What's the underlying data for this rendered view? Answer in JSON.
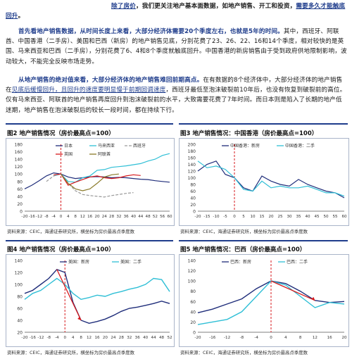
{
  "paragraphs": {
    "p1_prefix": "",
    "p1_bold_a": "除了房价",
    "p1_rest_a": "，我们更关注地产基本面数据，如地产销售、开工和投资，",
    "p1_bold_b": "需要多久才能触底回升",
    "p1_end": "。",
    "p2_bold": "首先看地产销售数据，从时间长度上来看，大部分经济体需要20个季度左右，也就是5年的时间。",
    "p2_rest": "其中，西班牙、阿联酋、中国香港（二手房）、美国和巴西（新房）的地产销售见底，分别花费了23、26、22、16和14个季度，相对较快的是英国、马来西亚和巴西（二手房），分别花费了6、4和8个季度就触底回升。中国香港的新房销售由于受到政府供地限制影响，波动较大，不能完全反映市场走势。",
    "p3_bold": "从地产销售的绝对值来看，大部分经济体的地产销售难回前期高点。",
    "p3_rest_a": "在有数据的8个经济体中，大部分经济体的地产销售在",
    "p3_underline": "见底后缓慢回升，且回升的速度要明显慢于前期回调速度",
    "p3_rest_b": "，西班牙最低至泡沫破裂前10年后，也没有恢复到破裂前的高位。仅有马来西亚、阿联酋的地产销售再度回升到泡沫破裂前的水平，大致需要花费了7年时间。而日本则是陷入了长期的地产低迷期，地产销售在泡沫破裂后的较长一段时间，都在持续下行。"
  },
  "figures": {
    "fig2": {
      "caption": "图2  地产销售情况（房价最高点=100）",
      "source": "资料来源：CEIC，海通证券研究所，横坐标为房价最高点季度数",
      "legend": [
        "日本",
        "马来西亚",
        "西班牙",
        "英国",
        "阿联酋"
      ],
      "x_ticks": [
        "-20",
        "-16",
        "-12",
        "-8",
        "-4",
        "0",
        "4",
        "8",
        "12",
        "16",
        "20",
        "24",
        "28",
        "32",
        "36",
        "40",
        "44",
        "48",
        "52",
        "56",
        "60"
      ],
      "y_ticks": [
        "0",
        "20",
        "40",
        "60",
        "80",
        "100",
        "120",
        "140",
        "160",
        "180"
      ]
    },
    "fig3": {
      "caption": "图3  地产销售情况：中国香港（房价最高点=100）",
      "source": "资料来源：CEIC，海通证券研究所，横坐标为房价最高点季度数",
      "legend": [
        "中国香港：新房",
        "中国香港：二手"
      ],
      "x_ticks": [
        "-20",
        "-15",
        "-10",
        "-5",
        "0",
        "5",
        "10",
        "15",
        "20",
        "25",
        "30",
        "35",
        "40",
        "45",
        "50",
        "55",
        "60"
      ],
      "y_ticks": [
        "0",
        "20",
        "40",
        "60",
        "80",
        "100",
        "120",
        "140",
        "160",
        "180",
        "200"
      ]
    },
    "fig4": {
      "caption": "图4  地产销售情况（房价最高点=100）",
      "source": "资料来源：CEIC，海通证券研究所，横坐标为房价最高点季度数",
      "legend": [
        "美国：新房",
        "美国：二手"
      ],
      "x_ticks": [
        "-20",
        "-16",
        "-12",
        "-8",
        "-4",
        "0",
        "4",
        "8",
        "12",
        "16",
        "20",
        "24",
        "28",
        "32",
        "36",
        "40",
        "44",
        "48",
        "52"
      ],
      "y_ticks": [
        "20",
        "40",
        "60",
        "80",
        "100",
        "120",
        "140"
      ]
    },
    "fig5": {
      "caption": "图5  地产销售情况：巴西（房价最高点=100）",
      "source": "资料来源：CEIC，海通证券研究所，横坐标为房价最高点季度数",
      "legend": [
        "巴西：新房",
        "巴西：二手"
      ],
      "x_ticks": [
        "-20",
        "-16",
        "-12",
        "-8",
        "-4",
        "0",
        "4",
        "8",
        "12",
        "16",
        "20"
      ],
      "y_ticks": [
        "0",
        "20",
        "40",
        "60",
        "80",
        "100",
        "120",
        "140"
      ]
    }
  },
  "colors": {
    "navy": "#1f2d7a",
    "cyan": "#2fbfd6",
    "gray": "#9a9a9a",
    "red": "#d7191c",
    "olive": "#8a7a2a",
    "caption_line": "#1f3d8c"
  },
  "chart_data": [
    {
      "type": "line",
      "title": "地产销售情况（房价最高点=100）",
      "x": [
        -20,
        -16,
        -12,
        -8,
        -4,
        0,
        4,
        8,
        12,
        16,
        20,
        24,
        28,
        32,
        36,
        40,
        44,
        48,
        52,
        56,
        60
      ],
      "ylim": [
        0,
        180
      ],
      "series": [
        {
          "name": "日本",
          "values": [
            60,
            70,
            82,
            95,
            103,
            100,
            92,
            88,
            90,
            92,
            93,
            92,
            90,
            91,
            90,
            88,
            86,
            85,
            82,
            80,
            78
          ]
        },
        {
          "name": "马来西亚",
          "values": [
            null,
            null,
            null,
            null,
            95,
            100,
            80,
            78,
            90,
            95,
            110,
            112,
            118,
            120,
            122,
            125,
            128,
            135,
            140,
            150,
            155
          ]
        },
        {
          "name": "西班牙",
          "values": [
            null,
            null,
            null,
            80,
            95,
            100,
            75,
            55,
            45,
            42,
            40,
            38,
            42,
            45,
            48,
            50,
            null,
            null,
            null,
            null,
            null
          ]
        },
        {
          "name": "英国",
          "values": [
            null,
            null,
            null,
            null,
            98,
            100,
            70,
            78,
            85,
            92,
            95,
            90,
            88,
            90,
            95,
            98,
            96,
            null,
            null,
            null,
            null
          ]
        },
        {
          "name": "阿联酋",
          "values": [
            null,
            null,
            null,
            null,
            null,
            100,
            75,
            60,
            55,
            60,
            75,
            92,
            98,
            100,
            null,
            null,
            null,
            null,
            null,
            null,
            null
          ]
        }
      ]
    },
    {
      "type": "line",
      "title": "地产销售情况：中国香港（房价最高点=100）",
      "x": [
        -20,
        -15,
        -10,
        -5,
        0,
        5,
        10,
        15,
        20,
        25,
        30,
        35,
        40,
        45,
        50,
        55,
        60
      ],
      "ylim": [
        0,
        200
      ],
      "series": [
        {
          "name": "中国香港：新房",
          "values": [
            120,
            140,
            150,
            110,
            100,
            70,
            60,
            105,
            90,
            80,
            75,
            95,
            80,
            70,
            60,
            55,
            40
          ]
        },
        {
          "name": "中国香港：二手",
          "values": [
            150,
            130,
            135,
            125,
            100,
            65,
            60,
            90,
            70,
            75,
            70,
            70,
            75,
            65,
            55,
            55,
            45
          ]
        }
      ]
    },
    {
      "type": "line",
      "title": "地产销售情况（房价最高点=100）",
      "x": [
        -20,
        -16,
        -12,
        -8,
        -4,
        0,
        4,
        8,
        12,
        16,
        20,
        24,
        28,
        32,
        36,
        40,
        44,
        48,
        52
      ],
      "ylim": [
        20,
        140
      ],
      "series": [
        {
          "name": "美国：新房",
          "values": [
            85,
            90,
            100,
            110,
            125,
            120,
            70,
            40,
            35,
            38,
            42,
            48,
            55,
            60,
            62,
            65,
            68,
            72,
            68
          ]
        },
        {
          "name": "美国：二手",
          "values": [
            75,
            85,
            90,
            100,
            110,
            100,
            85,
            75,
            78,
            82,
            80,
            85,
            88,
            92,
            95,
            100,
            110,
            108,
            88
          ]
        }
      ]
    },
    {
      "type": "line",
      "title": "地产销售情况：巴西（房价最高点=100）",
      "x": [
        -20,
        -16,
        -12,
        -8,
        -4,
        0,
        4,
        8,
        12,
        16,
        20
      ],
      "ylim": [
        0,
        140
      ],
      "series": [
        {
          "name": "巴西：新房",
          "values": [
            38,
            45,
            55,
            65,
            85,
            100,
            95,
            80,
            62,
            58,
            60
          ]
        },
        {
          "name": "巴西：二手",
          "values": [
            15,
            20,
            25,
            40,
            70,
            100,
            92,
            70,
            48,
            58,
            55
          ]
        }
      ]
    }
  ]
}
